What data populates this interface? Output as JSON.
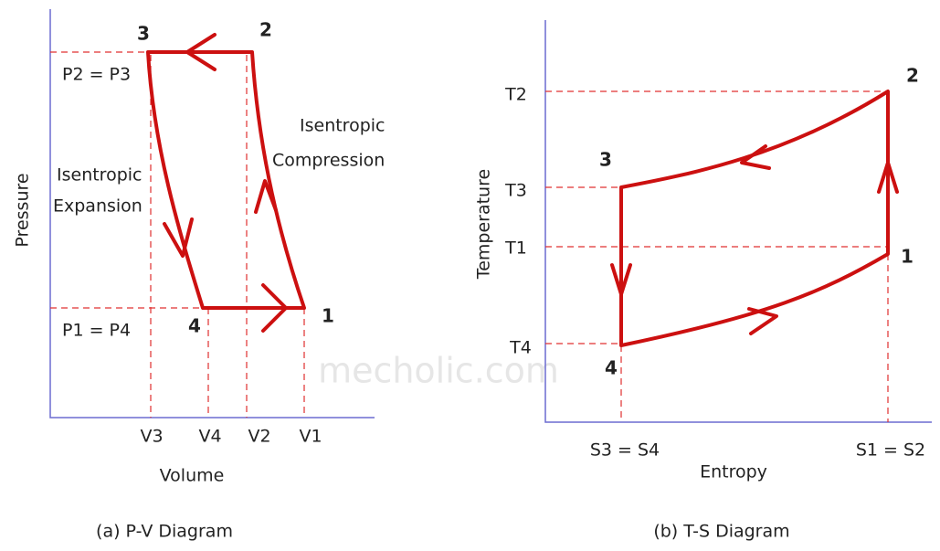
{
  "pv": {
    "caption": "(a) P-V Diagram",
    "y_label": "Pressure",
    "x_label": "Volume",
    "points": [
      "1",
      "2",
      "3",
      "4"
    ],
    "pressure_ticks": [
      "P2 = P3",
      "P1 = P4"
    ],
    "volume_ticks": [
      "V3",
      "V4",
      "V2",
      "V1"
    ],
    "annotations": [
      "Isentropic",
      "Compression",
      "Isentropic",
      "Expansion"
    ]
  },
  "ts": {
    "caption": "(b) T-S Diagram",
    "y_label": "Temperature",
    "x_label": "Entropy",
    "points": [
      "1",
      "2",
      "3",
      "4"
    ],
    "temperature_ticks": [
      "T2",
      "T3",
      "T1",
      "T4"
    ],
    "entropy_ticks": [
      "S3 = S4",
      "S1 = S2"
    ]
  },
  "watermark": "mecholic.com"
}
